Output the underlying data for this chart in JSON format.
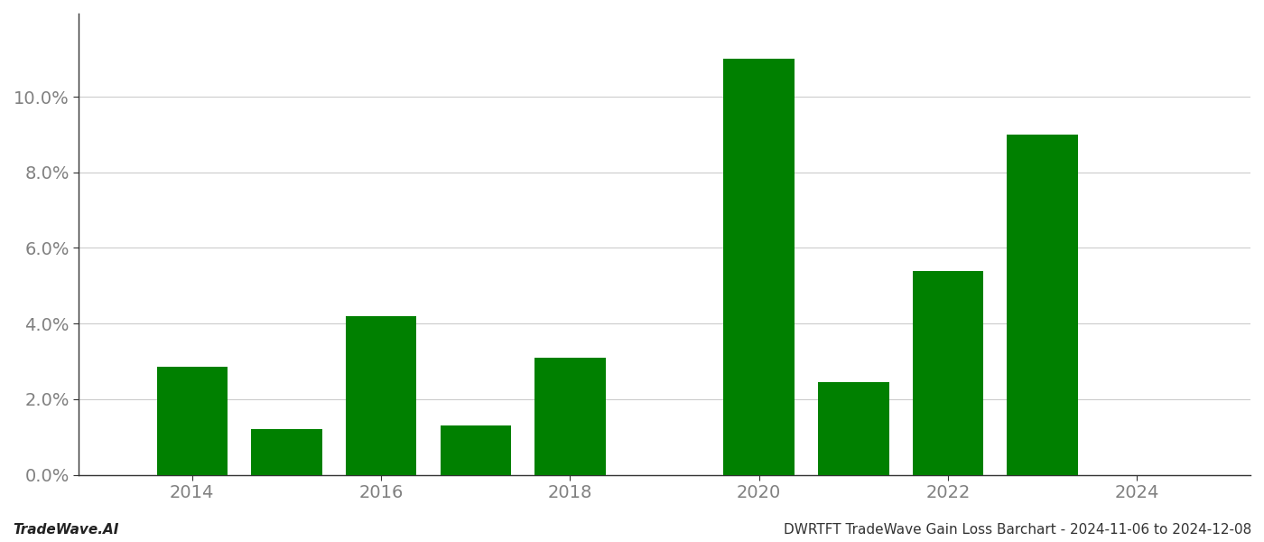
{
  "years": [
    2014,
    2015,
    2016,
    2017,
    2018,
    2020,
    2021,
    2022,
    2023
  ],
  "values": [
    0.0285,
    0.012,
    0.042,
    0.013,
    0.031,
    0.11,
    0.0245,
    0.054,
    0.09
  ],
  "bar_color": "#008000",
  "background_color": "#ffffff",
  "grid_color": "#cccccc",
  "ylabel_color": "#808080",
  "xlabel_color": "#808080",
  "ylim": [
    0,
    0.122
  ],
  "yticks": [
    0.0,
    0.02,
    0.04,
    0.06,
    0.08,
    0.1
  ],
  "xtick_labels": [
    "2014",
    "2016",
    "2018",
    "2020",
    "2022",
    "2024"
  ],
  "xtick_positions": [
    2014,
    2016,
    2018,
    2020,
    2022,
    2024
  ],
  "xlim": [
    2012.8,
    2025.2
  ],
  "footer_left": "TradeWave.AI",
  "footer_right": "DWRTFT TradeWave Gain Loss Barchart - 2024-11-06 to 2024-12-08",
  "bar_width": 0.75
}
